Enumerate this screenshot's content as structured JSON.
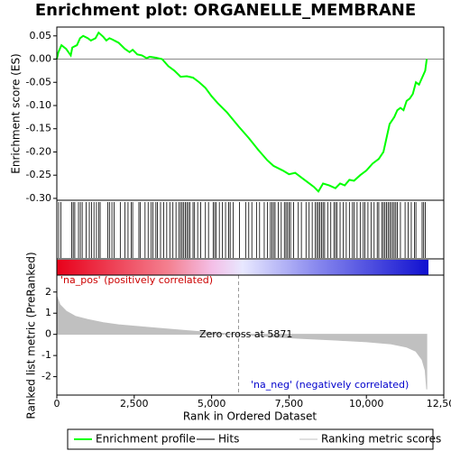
{
  "chart_data": {
    "type": "line",
    "title": "Enrichment plot: ORGANELLE_MEMBRANE",
    "y_label": "Enrichment score (ES)",
    "y2_label": "Ranked list metric (PreRanked)",
    "x_label": "Rank in Ordered Dataset",
    "annotations": [
      "'na_pos' (positively correlated)",
      "'na_neg' (negatively correlated)",
      "Zero cross at 5871"
    ],
    "zero_cross": 5871,
    "xlim": [
      0,
      12500
    ],
    "xticks": [
      0,
      {
        "value": 2500,
        "label": "2,500"
      },
      {
        "value": 5000,
        "label": "5,000"
      },
      {
        "value": 7500,
        "label": "7,500"
      },
      {
        "value": 10000,
        "label": "10,000"
      },
      {
        "value": 12500,
        "label": "12,500"
      }
    ],
    "ylim": [
      -0.304,
      0.069
    ],
    "yticks": [
      0.05,
      {
        "value": 0,
        "label": "0.00"
      },
      -0.05,
      {
        "value": -0.1,
        "label": "-0.10"
      },
      -0.15,
      {
        "value": -0.2,
        "label": "-0.20"
      },
      -0.25,
      {
        "value": -0.3,
        "label": "-0.30"
      }
    ],
    "y2lim": [
      -2.87,
      2.8
    ],
    "y2ticks": [
      2,
      1,
      0,
      -1,
      -2
    ],
    "series": [
      {
        "name": "Enrichment profile",
        "color": "#00ff00",
        "x": [
          0,
          50,
          150,
          300,
          450,
          500,
          650,
          750,
          850,
          1000,
          1100,
          1250,
          1350,
          1500,
          1600,
          1700,
          1800,
          2000,
          2200,
          2350,
          2450,
          2600,
          2750,
          2900,
          3000,
          3200,
          3400,
          3600,
          3800,
          4000,
          4200,
          4400,
          4600,
          4800,
          5000,
          5200,
          5500,
          5871,
          6200,
          6500,
          6800,
          7000,
          7300,
          7500,
          7700,
          7900,
          8100,
          8300,
          8450,
          8600,
          8800,
          9000,
          9150,
          9300,
          9450,
          9600,
          9800,
          10000,
          10200,
          10400,
          10550,
          10650,
          10750,
          10900,
          11000,
          11100,
          11200,
          11300,
          11400,
          11500,
          11600,
          11700,
          11800,
          11900,
          11950
        ],
        "values": [
          0,
          0.015,
          0.03,
          0.022,
          0.008,
          0.025,
          0.03,
          0.045,
          0.05,
          0.045,
          0.04,
          0.045,
          0.057,
          0.048,
          0.04,
          0.045,
          0.042,
          0.035,
          0.022,
          0.015,
          0.02,
          0.01,
          0.008,
          0.002,
          0.005,
          0.003,
          0,
          -0.015,
          -0.025,
          -0.038,
          -0.037,
          -0.04,
          -0.05,
          -0.062,
          -0.08,
          -0.095,
          -0.115,
          -0.145,
          -0.17,
          -0.195,
          -0.218,
          -0.23,
          -0.24,
          -0.248,
          -0.245,
          -0.255,
          -0.265,
          -0.275,
          -0.285,
          -0.268,
          -0.272,
          -0.278,
          -0.268,
          -0.272,
          -0.26,
          -0.262,
          -0.25,
          -0.24,
          -0.225,
          -0.215,
          -0.2,
          -0.17,
          -0.14,
          -0.125,
          -0.11,
          -0.105,
          -0.11,
          -0.09,
          -0.085,
          -0.075,
          -0.05,
          -0.055,
          -0.04,
          -0.025,
          0
        ]
      },
      {
        "name": "Hits",
        "color": "#000000",
        "x": [
          60,
          130,
          480,
          530,
          580,
          700,
          760,
          820,
          950,
          1050,
          1120,
          1200,
          1280,
          1350,
          1400,
          1650,
          1700,
          1780,
          1850,
          2050,
          2200,
          2300,
          2400,
          2450,
          2650,
          2700,
          2850,
          2950,
          3050,
          3100,
          3200,
          3250,
          3350,
          3450,
          3550,
          3650,
          3750,
          3850,
          3950,
          4000,
          4050,
          4100,
          4150,
          4200,
          4250,
          4300,
          4400,
          4450,
          4550,
          4650,
          4800,
          4900,
          5050,
          5100,
          5150,
          5250,
          5350,
          5450,
          5550,
          5600,
          5700,
          5900,
          6100,
          6200,
          6300,
          6450,
          6550,
          6700,
          6800,
          6900,
          6950,
          7000,
          7050,
          7150,
          7250,
          7350,
          7400,
          7450,
          7500,
          7550,
          7650,
          7800,
          7900,
          8050,
          8150,
          8250,
          8350,
          8400,
          8450,
          8500,
          8550,
          8600,
          8650,
          8750,
          8850,
          8950,
          9000,
          9050,
          9150,
          9250,
          9350,
          9450,
          9550,
          9600,
          9700,
          9800,
          9900,
          9950,
          10050,
          10150,
          10250,
          10350,
          10400,
          10500,
          10550,
          10600,
          10650,
          10700,
          10750,
          10800,
          10850,
          10900,
          10950,
          11000,
          11100,
          11250,
          11350,
          11450,
          11550,
          11600,
          11800,
          11850,
          11900
        ]
      },
      {
        "name": "Ranking metric scores",
        "color": "#c0c0c0",
        "axis": "y2",
        "x": [
          0,
          100,
          300,
          600,
          1000,
          1500,
          2000,
          3000,
          4000,
          5000,
          5871,
          7000,
          8000,
          9000,
          10000,
          10800,
          11300,
          11600,
          11800,
          11900,
          11950
        ],
        "values": [
          1.8,
          1.4,
          1.1,
          0.85,
          0.7,
          0.55,
          0.45,
          0.32,
          0.2,
          0.08,
          0,
          -0.12,
          -0.2,
          -0.27,
          -0.35,
          -0.45,
          -0.6,
          -0.8,
          -1.2,
          -1.7,
          -2.6
        ]
      }
    ]
  }
}
